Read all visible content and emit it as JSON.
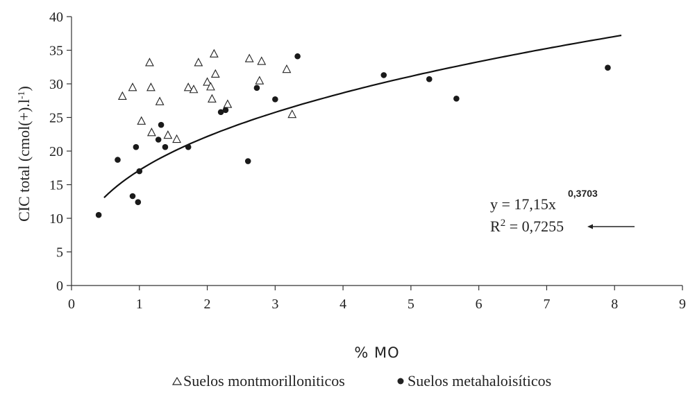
{
  "chart_data": {
    "type": "scatter",
    "xlabel": "% MO",
    "ylabel": "CIC total (cmol(+).l",
    "ylabel_sup": "-1",
    "ylabel_end": ")",
    "xlim": [
      0,
      9
    ],
    "ylim": [
      0,
      40
    ],
    "x_ticks": [
      "0",
      "1",
      "2",
      "3",
      "4",
      "5",
      "6",
      "7",
      "8",
      "9"
    ],
    "y_ticks": [
      "0",
      "5",
      "10",
      "15",
      "20",
      "25",
      "30",
      "35",
      "40"
    ],
    "grid": false,
    "legend_position": "bottom",
    "series": [
      {
        "name": "Suelos montmorilloniticos",
        "marker": "open-triangle",
        "points": [
          [
            0.75,
            28.2
          ],
          [
            0.9,
            29.5
          ],
          [
            1.03,
            24.5
          ],
          [
            1.15,
            33.2
          ],
          [
            1.17,
            29.5
          ],
          [
            1.18,
            22.8
          ],
          [
            1.3,
            27.4
          ],
          [
            1.42,
            22.4
          ],
          [
            1.55,
            21.8
          ],
          [
            1.72,
            29.5
          ],
          [
            1.8,
            29.2
          ],
          [
            1.87,
            33.2
          ],
          [
            2.0,
            30.3
          ],
          [
            2.05,
            29.6
          ],
          [
            2.07,
            27.8
          ],
          [
            2.1,
            34.5
          ],
          [
            2.12,
            31.5
          ],
          [
            2.3,
            27.0
          ],
          [
            2.62,
            33.8
          ],
          [
            2.77,
            30.5
          ],
          [
            2.8,
            33.4
          ],
          [
            3.17,
            32.2
          ],
          [
            3.25,
            25.5
          ]
        ]
      },
      {
        "name": "Suelos metahaloisíticos",
        "marker": "filled-circle",
        "points": [
          [
            0.4,
            10.5
          ],
          [
            0.68,
            18.7
          ],
          [
            0.9,
            13.3
          ],
          [
            0.95,
            20.6
          ],
          [
            0.98,
            12.4
          ],
          [
            1.0,
            17.0
          ],
          [
            1.28,
            21.7
          ],
          [
            1.32,
            23.9
          ],
          [
            1.38,
            20.6
          ],
          [
            1.72,
            20.6
          ],
          [
            2.2,
            25.8
          ],
          [
            2.27,
            26.1
          ],
          [
            2.6,
            18.5
          ],
          [
            2.73,
            29.4
          ],
          [
            3.0,
            27.7
          ],
          [
            3.33,
            34.1
          ],
          [
            4.6,
            31.3
          ],
          [
            5.27,
            30.7
          ],
          [
            5.67,
            27.8
          ],
          [
            7.9,
            32.4
          ]
        ]
      }
    ],
    "trendline": {
      "type": "power",
      "coefficient": 17.15,
      "exponent": 0.3703,
      "x_range": [
        0.48,
        8.1
      ]
    },
    "annotation": {
      "equation_main": "y = 17,15x",
      "equation_exponent": "0,3703",
      "r2_label": "R",
      "r2_sup": "2",
      "r2_value": " = 0,7255"
    }
  }
}
